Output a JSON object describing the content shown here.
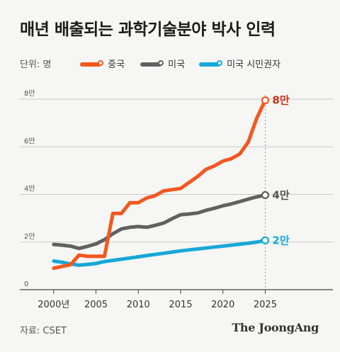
{
  "title": "매년 배출되는 과학기술분야 박사 인력",
  "unit_label": "단위: 명",
  "legend": [
    {
      "label": "중국",
      "color": "#f2571f"
    },
    {
      "label": "미국",
      "color": "#606060"
    },
    {
      "label": "미국 시민권자",
      "color": "#16a8d6"
    }
  ],
  "source": "자료: CSET",
  "brand": "The JoongAng",
  "chart_data": {
    "type": "line",
    "title": "매년 배출되는 과학기술분야 박사 인력",
    "ylabel": "단위: 명",
    "xlim": [
      1996,
      2033
    ],
    "ylim": [
      0,
      8
    ],
    "x_ticks": [
      2000,
      2005,
      2010,
      2015,
      2020,
      2025
    ],
    "x_tick_labels": [
      "2000년",
      "2005",
      "2010",
      "2015",
      "2020",
      "2025"
    ],
    "y_ticks": [
      0,
      2,
      4,
      6,
      8
    ],
    "y_tick_labels": [
      "0",
      "2만",
      "4만",
      "6만",
      "8만"
    ],
    "grid": "horizontal",
    "series": [
      {
        "name": "중국",
        "color": "#f2571f",
        "end_label": "8만",
        "end_label_color": "#c8321e",
        "x": [
          2000,
          2002,
          2003,
          2004,
          2005,
          2006,
          2007,
          2008,
          2009,
          2010,
          2011,
          2012,
          2013,
          2014,
          2015,
          2016,
          2017,
          2018,
          2019,
          2020,
          2021,
          2022,
          2023,
          2024,
          2025
        ],
        "y": [
          0.9,
          1.05,
          1.45,
          1.4,
          1.4,
          1.4,
          3.2,
          3.2,
          3.65,
          3.65,
          3.85,
          3.95,
          4.15,
          4.2,
          4.25,
          4.5,
          4.75,
          5.05,
          5.2,
          5.4,
          5.5,
          5.7,
          6.2,
          7.2,
          7.95
        ]
      },
      {
        "name": "미국",
        "color": "#606060",
        "end_label": "4만",
        "end_label_color": "#555555",
        "x": [
          2000,
          2001,
          2002,
          2003,
          2004,
          2005,
          2006,
          2007,
          2008,
          2009,
          2010,
          2011,
          2012,
          2013,
          2014,
          2015,
          2016,
          2017,
          2018,
          2019,
          2020,
          2021,
          2022,
          2023,
          2024,
          2025
        ],
        "y": [
          1.9,
          1.87,
          1.83,
          1.73,
          1.82,
          1.92,
          2.1,
          2.35,
          2.55,
          2.62,
          2.65,
          2.62,
          2.7,
          2.8,
          2.98,
          3.15,
          3.18,
          3.22,
          3.33,
          3.42,
          3.52,
          3.6,
          3.7,
          3.8,
          3.9,
          3.97
        ]
      },
      {
        "name": "미국 시민권자",
        "color": "#16a8d6",
        "end_label": "2만",
        "end_label_color": "#16a8d6",
        "x": [
          2000,
          2001,
          2002,
          2003,
          2004,
          2005,
          2006,
          2007,
          2008,
          2009,
          2010,
          2011,
          2012,
          2013,
          2014,
          2015,
          2016,
          2017,
          2018,
          2019,
          2020,
          2021,
          2022,
          2023,
          2024,
          2025
        ],
        "y": [
          1.2,
          1.15,
          1.08,
          1.03,
          1.06,
          1.1,
          1.18,
          1.23,
          1.28,
          1.33,
          1.38,
          1.43,
          1.48,
          1.53,
          1.58,
          1.63,
          1.67,
          1.71,
          1.75,
          1.79,
          1.83,
          1.87,
          1.91,
          1.95,
          2.0,
          2.07
        ]
      }
    ]
  }
}
